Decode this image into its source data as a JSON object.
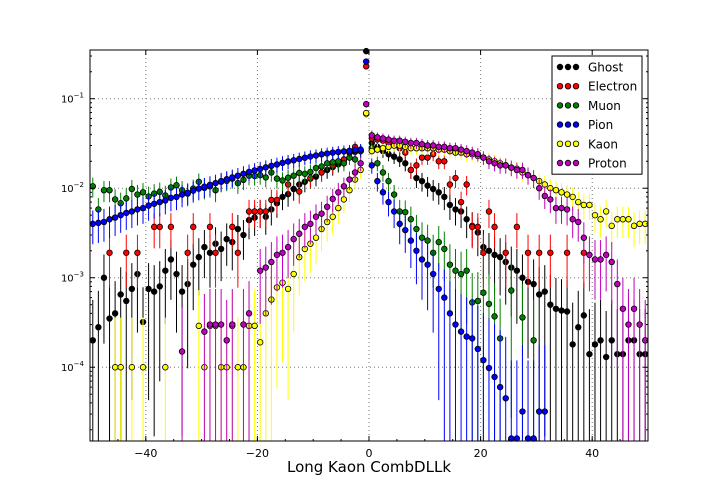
{
  "chart_data": {
    "type": "scatter",
    "title": "",
    "xlabel": "Long Kaon CombDLLk",
    "ylabel": "",
    "xlim": [
      -50,
      50
    ],
    "ylim": [
      1.5e-05,
      0.35
    ],
    "yscale": "log",
    "error_bars": true,
    "grid": true,
    "legend_position": "top-right",
    "x_ticks": [
      -40,
      -20,
      0,
      20,
      40
    ],
    "x_tick_labels": [
      "−40",
      "−20",
      "0",
      "20",
      "40"
    ],
    "y_ticks": [
      0.0001,
      0.001,
      0.01,
      0.1
    ],
    "y_tick_labels": [
      {
        "base": "10",
        "exp": "−4"
      },
      {
        "base": "10",
        "exp": "−3"
      },
      {
        "base": "10",
        "exp": "−2"
      },
      {
        "base": "10",
        "exp": "−1"
      }
    ],
    "series": [
      {
        "name": "Ghost",
        "color": "#000000",
        "x": [
          -49.5,
          -48.5,
          -47.5,
          -46.5,
          -45.5,
          -44.5,
          -43.5,
          -42.5,
          -41.5,
          -40.5,
          -39.5,
          -38.5,
          -37.5,
          -36.5,
          -35.5,
          -34.5,
          -33.5,
          -32.5,
          -31.5,
          -30.5,
          -29.5,
          -28.5,
          -27.5,
          -26.5,
          -25.5,
          -24.5,
          -23.5,
          -22.5,
          -21.5,
          -20.5,
          -19.5,
          -18.5,
          -17.5,
          -16.5,
          -15.5,
          -14.5,
          -13.5,
          -12.5,
          -11.5,
          -10.5,
          -9.5,
          -8.5,
          -7.5,
          -6.5,
          -5.5,
          -4.5,
          -3.5,
          -2.5,
          -1.5,
          -0.5,
          0.5,
          1.5,
          2.5,
          3.5,
          4.5,
          5.5,
          6.5,
          7.5,
          8.5,
          9.5,
          10.5,
          11.5,
          12.5,
          13.5,
          14.5,
          15.5,
          16.5,
          17.5,
          18.5,
          19.5,
          20.5,
          21.5,
          22.5,
          23.5,
          24.5,
          25.5,
          26.5,
          27.5,
          28.5,
          29.5,
          30.5,
          31.5,
          32.5,
          33.5,
          34.5,
          35.5,
          36.5,
          37.5,
          38.5,
          39.5,
          40.5,
          41.5,
          42.5,
          43.5,
          44.5,
          45.5,
          46.5,
          47.5,
          48.5,
          49.5
        ],
        "y": [
          0.0002,
          0.00028,
          0.001,
          0.00035,
          0.0004,
          0.00065,
          0.00055,
          0.00075,
          0.0011,
          0.00032,
          0.00075,
          0.0007,
          0.0008,
          0.0012,
          0.0016,
          0.0011,
          0.0007,
          0.00085,
          0.0014,
          0.0017,
          0.0022,
          0.0019,
          0.0024,
          0.0021,
          0.0027,
          0.0025,
          0.0035,
          0.003,
          0.0044,
          0.0047,
          0.0055,
          0.0048,
          0.0058,
          0.0068,
          0.008,
          0.0086,
          0.0098,
          0.011,
          0.0118,
          0.0128,
          0.0135,
          0.015,
          0.016,
          0.0172,
          0.0185,
          0.0205,
          0.025,
          0.0255,
          0.026,
          0.34,
          0.032,
          0.029,
          0.026,
          0.024,
          0.0225,
          0.021,
          0.019,
          0.016,
          0.013,
          0.012,
          0.0107,
          0.0098,
          0.009,
          0.008,
          0.0065,
          0.0058,
          0.0055,
          0.0045,
          0.0038,
          0.0032,
          0.0022,
          0.002,
          0.0018,
          0.0017,
          0.0015,
          0.0013,
          0.0012,
          0.001,
          0.0009,
          0.00085,
          0.00065,
          0.0007,
          0.0005,
          0.00045,
          0.00043,
          0.00042,
          0.00018,
          0.00028,
          0.00038,
          0.00014,
          0.00018,
          0.0002,
          0.00013,
          0.0002,
          0.00014,
          0.00014,
          0.0002,
          0.0002,
          0.00014,
          0.00014
        ]
      },
      {
        "name": "Electron",
        "color": "#ff0000",
        "x": [
          -46.5,
          -43.5,
          -41.5,
          -38.5,
          -37.5,
          -35.5,
          -32.5,
          -31.5,
          -28.5,
          -27.5,
          -24.5,
          -23.5,
          -21.5,
          -20.5,
          -19.5,
          -18.5,
          -17.5,
          -16.5,
          -14.5,
          -12.5,
          -10.5,
          -8.5,
          -6.5,
          -4.5,
          -2.5,
          -0.5,
          0.5,
          1.5,
          2.5,
          3.5,
          4.5,
          5.5,
          6.5,
          7.5,
          8.5,
          9.5,
          10.5,
          11.5,
          12.5,
          13.5,
          14.5,
          15.5,
          16.5,
          17.5,
          18.5,
          19.5,
          20.5,
          21.5,
          22.5,
          24.5,
          26.5,
          28.5,
          30.5,
          32.5,
          35.5,
          38.5
        ],
        "y": [
          0.0019,
          0.0019,
          0.0019,
          0.0037,
          0.0037,
          0.0037,
          0.0019,
          0.0037,
          0.0037,
          0.0019,
          0.0037,
          0.0019,
          0.0055,
          0.0055,
          0.0055,
          0.0055,
          0.0074,
          0.0074,
          0.011,
          0.0092,
          0.013,
          0.015,
          0.018,
          0.021,
          0.029,
          0.23,
          0.036,
          0.035,
          0.034,
          0.032,
          0.03,
          0.028,
          0.025,
          0.016,
          0.018,
          0.022,
          0.022,
          0.024,
          0.02,
          0.02,
          0.011,
          0.013,
          0.007,
          0.011,
          0.0037,
          0.0037,
          0.0019,
          0.0055,
          0.0037,
          0.0019,
          0.0037,
          0.0019,
          0.0019,
          0.0019,
          0.0019,
          0.0019
        ]
      },
      {
        "name": "Muon",
        "color": "#008000",
        "x": [
          -49.5,
          -48.5,
          -47.5,
          -46.5,
          -45.5,
          -44.5,
          -43.5,
          -42.5,
          -41.5,
          -40.5,
          -39.5,
          -38.5,
          -37.5,
          -36.5,
          -35.5,
          -34.5,
          -33.5,
          -32.5,
          -31.5,
          -30.5,
          -29.5,
          -28.5,
          -27.5,
          -26.5,
          -25.5,
          -24.5,
          -23.5,
          -22.5,
          -21.5,
          -20.5,
          -19.5,
          -18.5,
          -17.5,
          -16.5,
          -15.5,
          -14.5,
          -13.5,
          -12.5,
          -11.5,
          -10.5,
          -9.5,
          -8.5,
          -7.5,
          -6.5,
          -5.5,
          -4.5,
          -3.5,
          -2.5,
          -1.5,
          -0.5,
          0.5,
          1.5,
          2.5,
          3.5,
          4.5,
          5.5,
          6.5,
          7.5,
          8.5,
          9.5,
          10.5,
          11.5,
          12.5,
          13.5,
          14.5,
          15.5,
          16.5,
          17.5,
          18.5,
          19.5,
          20.5,
          21.5,
          22.5,
          23.5,
          25.5,
          27.5,
          29.5
        ],
        "y": [
          0.0105,
          0.0058,
          0.0095,
          0.0095,
          0.0075,
          0.0068,
          0.0077,
          0.0098,
          0.0085,
          0.009,
          0.0081,
          0.0087,
          0.0091,
          0.0083,
          0.0102,
          0.0108,
          0.0095,
          0.0087,
          0.0099,
          0.0118,
          0.0101,
          0.0105,
          0.0095,
          0.0118,
          0.0121,
          0.0128,
          0.0114,
          0.0124,
          0.0138,
          0.0137,
          0.014,
          0.0132,
          0.015,
          0.0128,
          0.0122,
          0.0131,
          0.0138,
          0.0148,
          0.0145,
          0.0152,
          0.0168,
          0.0175,
          0.019,
          0.0195,
          0.02,
          0.019,
          0.022,
          0.021,
          0.026,
          0.068,
          0.028,
          0.019,
          0.015,
          0.012,
          0.0085,
          0.0055,
          0.0054,
          0.0045,
          0.0035,
          0.0028,
          0.0026,
          0.0019,
          0.0025,
          0.0021,
          0.0014,
          0.0012,
          0.0011,
          0.0012,
          0.00053,
          0.00055,
          0.00068,
          0.00051,
          0.00037,
          0.00021,
          0.00072,
          0.00036,
          0.0002
        ]
      },
      {
        "name": "Pion",
        "color": "#0000ff",
        "x": [
          -49.5,
          -48.5,
          -47.5,
          -46.5,
          -45.5,
          -44.5,
          -43.5,
          -42.5,
          -41.5,
          -40.5,
          -39.5,
          -38.5,
          -37.5,
          -36.5,
          -35.5,
          -34.5,
          -33.5,
          -32.5,
          -31.5,
          -30.5,
          -29.5,
          -28.5,
          -27.5,
          -26.5,
          -25.5,
          -24.5,
          -23.5,
          -22.5,
          -21.5,
          -20.5,
          -19.5,
          -18.5,
          -17.5,
          -16.5,
          -15.5,
          -14.5,
          -13.5,
          -12.5,
          -11.5,
          -10.5,
          -9.5,
          -8.5,
          -7.5,
          -6.5,
          -5.5,
          -4.5,
          -3.5,
          -2.5,
          -1.5,
          -0.5,
          0.5,
          1.5,
          2.5,
          3.5,
          4.5,
          5.5,
          6.5,
          7.5,
          8.5,
          9.5,
          10.5,
          11.5,
          12.5,
          13.5,
          14.5,
          15.5,
          16.5,
          17.5,
          18.5,
          19.5,
          20.5,
          21.5,
          22.5,
          23.5,
          24.5,
          25.5,
          26.5,
          27.5,
          28.5,
          29.5,
          30.5,
          31.5
        ],
        "y": [
          0.004,
          0.0041,
          0.0042,
          0.0045,
          0.0047,
          0.005,
          0.0053,
          0.0055,
          0.0058,
          0.006,
          0.0064,
          0.0067,
          0.007,
          0.0073,
          0.0078,
          0.008,
          0.0085,
          0.0089,
          0.0094,
          0.0099,
          0.0104,
          0.0109,
          0.0114,
          0.012,
          0.0126,
          0.0132,
          0.0138,
          0.0145,
          0.0152,
          0.0158,
          0.0164,
          0.0171,
          0.0178,
          0.0184,
          0.0192,
          0.0199,
          0.0205,
          0.0212,
          0.0219,
          0.0226,
          0.0232,
          0.0239,
          0.0244,
          0.025,
          0.0254,
          0.0258,
          0.0262,
          0.0268,
          0.027,
          0.26,
          0.018,
          0.012,
          0.009,
          0.007,
          0.0055,
          0.004,
          0.0034,
          0.0026,
          0.002,
          0.0016,
          0.0014,
          0.0011,
          0.00075,
          0.0006,
          0.0004,
          0.0003,
          0.00025,
          0.00022,
          0.00021,
          0.00016,
          0.00012,
          9.8e-05,
          7.8e-05,
          6e-05,
          4.5e-05,
          1.6e-05,
          1.6e-05,
          3.2e-05,
          1.6e-05,
          1.6e-05,
          3.2e-05,
          3.2e-05
        ]
      },
      {
        "name": "Kaon",
        "color": "#ffff00",
        "x": [
          -45.5,
          -44.5,
          -42.5,
          -40.5,
          -36.5,
          -30.5,
          -29.5,
          -28.5,
          -27.5,
          -26.5,
          -25.5,
          -24.5,
          -23.5,
          -22.5,
          -21.5,
          -20.5,
          -19.5,
          -18.5,
          -17.5,
          -16.5,
          -15.5,
          -14.5,
          -13.5,
          -12.5,
          -11.5,
          -10.5,
          -9.5,
          -8.5,
          -7.5,
          -6.5,
          -5.5,
          -4.5,
          -3.5,
          -2.5,
          -1.5,
          -0.5,
          0.5,
          1.5,
          2.5,
          3.5,
          4.5,
          5.5,
          6.5,
          7.5,
          8.5,
          9.5,
          10.5,
          11.5,
          12.5,
          13.5,
          14.5,
          15.5,
          16.5,
          17.5,
          18.5,
          19.5,
          20.5,
          21.5,
          22.5,
          23.5,
          24.5,
          25.5,
          26.5,
          27.5,
          28.5,
          29.5,
          30.5,
          31.5,
          32.5,
          33.5,
          34.5,
          35.5,
          36.5,
          37.5,
          38.5,
          39.5,
          40.5,
          41.5,
          42.5,
          43.5,
          44.5,
          45.5,
          46.5,
          47.5,
          48.5,
          49.5
        ],
        "y": [
          0.0001,
          0.0001,
          0.0001,
          0.0001,
          0.0001,
          0.00029,
          0.0001,
          0.00029,
          0.00029,
          0.0001,
          0.0001,
          0.00029,
          0.0001,
          0.0001,
          0.00029,
          0.00029,
          0.00019,
          0.0004,
          0.00057,
          0.00078,
          0.00088,
          0.00075,
          0.0011,
          0.0017,
          0.0021,
          0.0024,
          0.0028,
          0.0035,
          0.0042,
          0.0048,
          0.006,
          0.0075,
          0.0095,
          0.0125,
          0.016,
          0.069,
          0.026,
          0.027,
          0.028,
          0.029,
          0.03,
          0.03,
          0.029,
          0.028,
          0.028,
          0.028,
          0.028,
          0.028,
          0.027,
          0.027,
          0.026,
          0.025,
          0.025,
          0.024,
          0.024,
          0.023,
          0.022,
          0.021,
          0.02,
          0.019,
          0.018,
          0.017,
          0.0165,
          0.015,
          0.014,
          0.013,
          0.012,
          0.011,
          0.01,
          0.0095,
          0.009,
          0.0085,
          0.008,
          0.007,
          0.0065,
          0.0065,
          0.005,
          0.0045,
          0.0055,
          0.0038,
          0.0045,
          0.0045,
          0.0045,
          0.0038,
          0.004,
          0.004
        ]
      },
      {
        "name": "Proton",
        "color": "#bf00bf",
        "x": [
          -33.5,
          -29.5,
          -28.5,
          -27.5,
          -26.5,
          -25.5,
          -24.5,
          -22.5,
          -21.5,
          -19.5,
          -18.5,
          -17.5,
          -16.5,
          -15.5,
          -14.5,
          -13.5,
          -12.5,
          -11.5,
          -10.5,
          -9.5,
          -8.5,
          -7.5,
          -6.5,
          -5.5,
          -4.5,
          -3.5,
          -2.5,
          -1.5,
          -0.5,
          0.5,
          1.5,
          2.5,
          3.5,
          4.5,
          5.5,
          6.5,
          7.5,
          8.5,
          9.5,
          10.5,
          11.5,
          12.5,
          13.5,
          14.5,
          15.5,
          16.5,
          17.5,
          18.5,
          19.5,
          20.5,
          21.5,
          22.5,
          23.5,
          24.5,
          25.5,
          26.5,
          27.5,
          28.5,
          29.5,
          30.5,
          31.5,
          32.5,
          33.5,
          34.5,
          35.5,
          36.5,
          37.5,
          38.5,
          39.5,
          40.5,
          41.5,
          42.5,
          43.5,
          44.5,
          45.5,
          46.5,
          47.5,
          48.5,
          49.5
        ],
        "y": [
          0.00015,
          0.00025,
          0.0003,
          0.0003,
          0.0003,
          0.0002,
          0.0003,
          0.0003,
          0.0004,
          0.0012,
          0.0013,
          0.0015,
          0.0018,
          0.0019,
          0.0022,
          0.0027,
          0.0031,
          0.0037,
          0.004,
          0.0048,
          0.0052,
          0.0062,
          0.0076,
          0.009,
          0.0105,
          0.0125,
          0.015,
          0.019,
          0.087,
          0.039,
          0.037,
          0.036,
          0.035,
          0.034,
          0.034,
          0.033,
          0.032,
          0.032,
          0.031,
          0.03,
          0.03,
          0.029,
          0.029,
          0.028,
          0.028,
          0.027,
          0.026,
          0.025,
          0.024,
          0.022,
          0.02,
          0.019,
          0.018,
          0.018,
          0.017,
          0.016,
          0.016,
          0.014,
          0.013,
          0.01,
          0.0082,
          0.0075,
          0.006,
          0.006,
          0.0058,
          0.0045,
          0.0042,
          0.0028,
          0.0018,
          0.0016,
          0.0016,
          0.0018,
          0.0015,
          0.00085,
          0.00045,
          0.0003,
          0.00045,
          0.0003,
          0.0002
        ]
      }
    ]
  }
}
